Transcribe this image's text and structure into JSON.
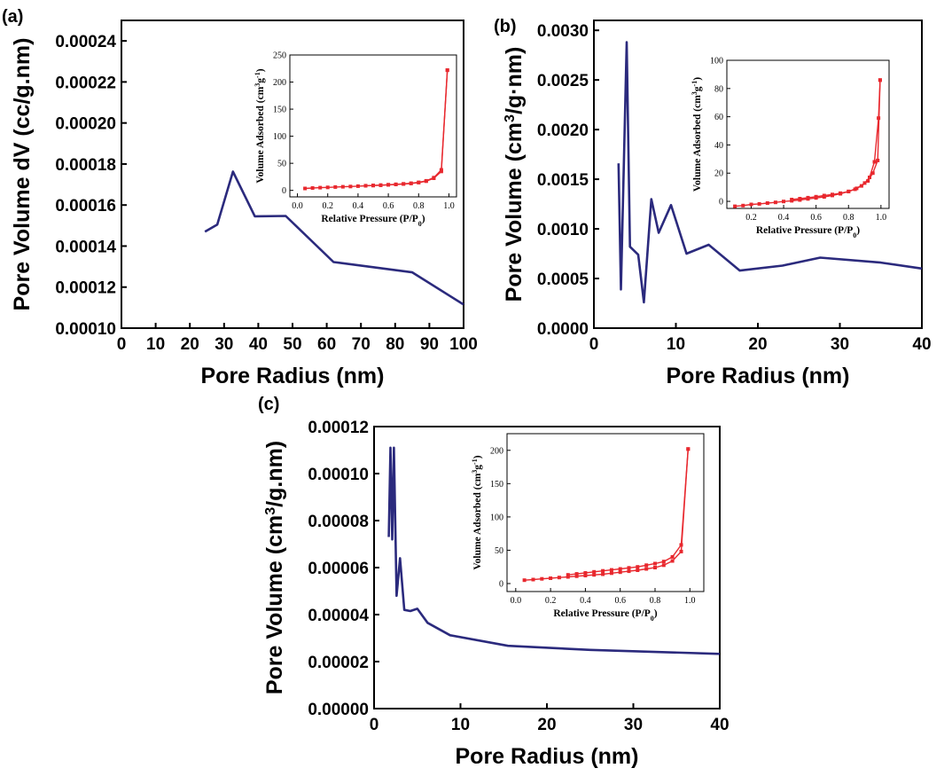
{
  "figure": {
    "panel_labels": [
      "(a)",
      "(b)",
      "(c)"
    ]
  },
  "chart_data": [
    {
      "panel": "(a)",
      "type": "line",
      "xlabel": "Pore Radius (nm)",
      "ylabel": "Pore Volume dV (cc/g.nm)",
      "xlim": [
        0,
        100
      ],
      "ylim": [
        0.0001,
        0.00025
      ],
      "xticks": [
        "0",
        "10",
        "20",
        "30",
        "40",
        "50",
        "60",
        "70",
        "80",
        "90",
        "100"
      ],
      "yticks": [
        "0.00010",
        "0.00012",
        "0.00014",
        "0.00016",
        "0.00018",
        "0.00020",
        "0.00022",
        "0.00024"
      ],
      "line_color": "#2b2a7d",
      "x": [
        24.4,
        28,
        32.6,
        39,
        48,
        62,
        85,
        100
      ],
      "y": [
        0.000147,
        0.0001505,
        0.0001763,
        0.0001545,
        0.0001547,
        0.0001322,
        0.0001272,
        0.0001115
      ],
      "inset": {
        "type": "line",
        "xlabel": "Relative Pressure (P/P0)",
        "ylabel": "Volume Adsorbed (cm3g-1)",
        "xlim": [
          -0.05,
          1.05
        ],
        "ylim": [
          -12,
          250
        ],
        "xticks": [
          "0.0",
          "0.2",
          "0.4",
          "0.6",
          "0.8",
          "1.0"
        ],
        "yticks": [
          "0",
          "50",
          "100",
          "150",
          "200",
          "250"
        ],
        "color": "#e8282e",
        "series": [
          {
            "x": [
              0.05,
              0.1,
              0.15,
              0.2,
              0.25,
              0.3,
              0.35,
              0.4,
              0.45,
              0.5,
              0.55,
              0.6,
              0.65,
              0.7,
              0.75,
              0.8,
              0.85,
              0.9,
              0.95,
              0.99
            ],
            "y": [
              3.6,
              4.4,
              5.1,
              5.6,
              6.1,
              6.6,
              7.2,
              7.8,
              8.4,
              8.9,
              9.5,
              10.2,
              10.9,
              11.7,
              12.8,
              14.4,
              17,
              22.4,
              35,
              222
            ]
          },
          {
            "x": [
              0.99,
              0.95,
              0.9,
              0.85,
              0.8,
              0.75,
              0.7,
              0.65,
              0.6,
              0.55,
              0.5,
              0.45
            ],
            "y": [
              222,
              38,
              23.5,
              17.6,
              14.9,
              13.2,
              12,
              11.2,
              10.5,
              9.8,
              9.2,
              8.6
            ]
          }
        ]
      }
    },
    {
      "panel": "(b)",
      "type": "line",
      "xlabel": "Pore Radius (nm)",
      "ylabel": "Pore Volume (cm3/g·nm)",
      "xlim": [
        0,
        40
      ],
      "ylim": [
        0,
        0.0031
      ],
      "xticks": [
        "0",
        "10",
        "20",
        "30",
        "40"
      ],
      "yticks": [
        "0.0000",
        "0.0005",
        "0.0010",
        "0.0015",
        "0.0020",
        "0.0025",
        "0.0030"
      ],
      "line_color": "#2b2a7d",
      "x": [
        3,
        3.3,
        4,
        4.4,
        5.4,
        6.1,
        7,
        7.9,
        9.4,
        11.3,
        14,
        17.8,
        23,
        27.6,
        35,
        40
      ],
      "y": [
        0.00166,
        0.00039,
        0.00288,
        0.00082,
        0.00074,
        0.00026,
        0.0013,
        0.00096,
        0.00124,
        0.00075,
        0.00084,
        0.00058,
        0.00063,
        0.00071,
        0.00066,
        0.0006
      ],
      "inset": {
        "type": "line",
        "xlabel": "Relative Pressure (P/P0)",
        "ylabel": "Volume Adsorbed (cm3g-1)",
        "xlim": [
          0.05,
          1.05
        ],
        "ylim": [
          -5,
          100
        ],
        "xticks": [
          "0.2",
          "0.4",
          "0.6",
          "0.8",
          "1.0"
        ],
        "yticks": [
          "0",
          "20",
          "40",
          "60",
          "80",
          "100"
        ],
        "color": "#e8282e",
        "series": [
          {
            "x": [
              0.1,
              0.15,
              0.2,
              0.25,
              0.3,
              0.35,
              0.4,
              0.45,
              0.5,
              0.55,
              0.6,
              0.65,
              0.7,
              0.75,
              0.8,
              0.85,
              0.9,
              0.93,
              0.96,
              0.985,
              0.995
            ],
            "y": [
              -3.5,
              -3,
              -2.2,
              -1.8,
              -1.2,
              -0.7,
              -0.1,
              0.4,
              1,
              1.7,
              2.4,
              3.2,
              4.2,
              5.4,
              7,
              9.2,
              13,
              17,
              28,
              59,
              86
            ]
          },
          {
            "x": [
              0.995,
              0.98,
              0.95,
              0.92,
              0.88,
              0.84,
              0.8,
              0.75,
              0.7,
              0.65,
              0.6,
              0.55,
              0.5,
              0.45
            ],
            "y": [
              86,
              29,
              20,
              14.5,
              11,
              8.6,
              7,
              5.8,
              4.9,
              4.1,
              3.3,
              2.6,
              1.9,
              1.3
            ]
          }
        ]
      }
    },
    {
      "panel": "(c)",
      "type": "line",
      "xlabel": "Pore Radius (nm)",
      "ylabel": "Pore Volume (cm3/g.nm)",
      "xlim": [
        0,
        40
      ],
      "ylim": [
        0,
        0.00012
      ],
      "xticks": [
        "0",
        "10",
        "20",
        "30",
        "40"
      ],
      "yticks": [
        "0.00000",
        "0.00002",
        "0.00004",
        "0.00006",
        "0.00008",
        "0.00010",
        "0.00012"
      ],
      "line_color": "#2b2a7d",
      "x": [
        1.7,
        1.9,
        2.1,
        2.3,
        2.6,
        3,
        3.5,
        4.2,
        5,
        6.2,
        8.8,
        15.5,
        25,
        40
      ],
      "y": [
        7.3e-05,
        0.000111,
        7.2e-05,
        0.000111,
        4.8e-05,
        6.4e-05,
        4.2e-05,
        4.15e-05,
        4.25e-05,
        3.65e-05,
        3.12e-05,
        2.67e-05,
        2.5e-05,
        2.33e-05
      ],
      "inset": {
        "type": "line",
        "xlabel": "Relative Pressure (P/P0)",
        "ylabel": "Volume Adsorbed (cm3g-1)",
        "xlim": [
          -0.05,
          1.08
        ],
        "ylim": [
          -12,
          225
        ],
        "xticks": [
          "0.0",
          "0.2",
          "0.4",
          "0.6",
          "0.8",
          "1.0"
        ],
        "yticks": [
          "0",
          "50",
          "100",
          "150",
          "200"
        ],
        "color": "#e8282e",
        "series": [
          {
            "x": [
              0.05,
              0.1,
              0.15,
              0.2,
              0.25,
              0.3,
              0.35,
              0.4,
              0.45,
              0.5,
              0.55,
              0.6,
              0.65,
              0.7,
              0.75,
              0.8,
              0.85,
              0.9,
              0.95,
              0.99
            ],
            "y": [
              5,
              6,
              7,
              8,
              9,
              10,
              11,
              12,
              13,
              14,
              15.5,
              17,
              18.5,
              20,
              22,
              24,
              27.5,
              34,
              48,
              202
            ]
          },
          {
            "x": [
              0.99,
              0.95,
              0.9,
              0.85,
              0.8,
              0.75,
              0.7,
              0.65,
              0.6,
              0.55,
              0.5,
              0.45,
              0.4,
              0.35,
              0.3
            ],
            "y": [
              202,
              58,
              40,
              33,
              30,
              27.5,
              25,
              23.5,
              22,
              20.5,
              19,
              17.5,
              16,
              14.5,
              13
            ]
          }
        ]
      }
    }
  ]
}
